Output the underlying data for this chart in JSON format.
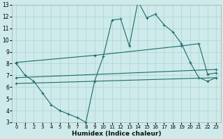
{
  "xlabel": "Humidex (Indice chaleur)",
  "xlim": [
    -0.5,
    23.5
  ],
  "ylim": [
    3,
    13
  ],
  "xticks": [
    0,
    1,
    2,
    3,
    4,
    5,
    6,
    7,
    8,
    9,
    10,
    11,
    12,
    13,
    14,
    15,
    16,
    17,
    18,
    19,
    20,
    21,
    22,
    23
  ],
  "yticks": [
    3,
    4,
    5,
    6,
    7,
    8,
    9,
    10,
    11,
    12,
    13
  ],
  "bg_color": "#ceeaea",
  "grid_color": "#b0d8d8",
  "line_color": "#1e6b6b",
  "lines": [
    {
      "x": [
        0,
        1,
        2,
        3,
        4,
        5,
        6,
        7,
        8,
        9,
        10,
        11,
        12,
        13,
        14,
        15,
        16,
        17,
        18,
        19,
        20,
        21,
        22,
        23
      ],
      "y": [
        8.0,
        7.0,
        6.5,
        5.5,
        4.5,
        4.0,
        3.7,
        3.4,
        3.0,
        6.5,
        8.6,
        11.7,
        11.8,
        9.5,
        13.3,
        11.9,
        12.2,
        11.3,
        10.7,
        9.7,
        8.1,
        6.8,
        6.5,
        6.8
      ]
    },
    {
      "x": [
        0,
        9,
        19,
        21,
        22,
        23
      ],
      "y": [
        8.1,
        8.7,
        9.5,
        9.7,
        7.1,
        7.2
      ]
    },
    {
      "x": [
        0,
        23
      ],
      "y": [
        6.8,
        7.5
      ]
    },
    {
      "x": [
        0,
        23
      ],
      "y": [
        6.3,
        6.8
      ]
    }
  ]
}
